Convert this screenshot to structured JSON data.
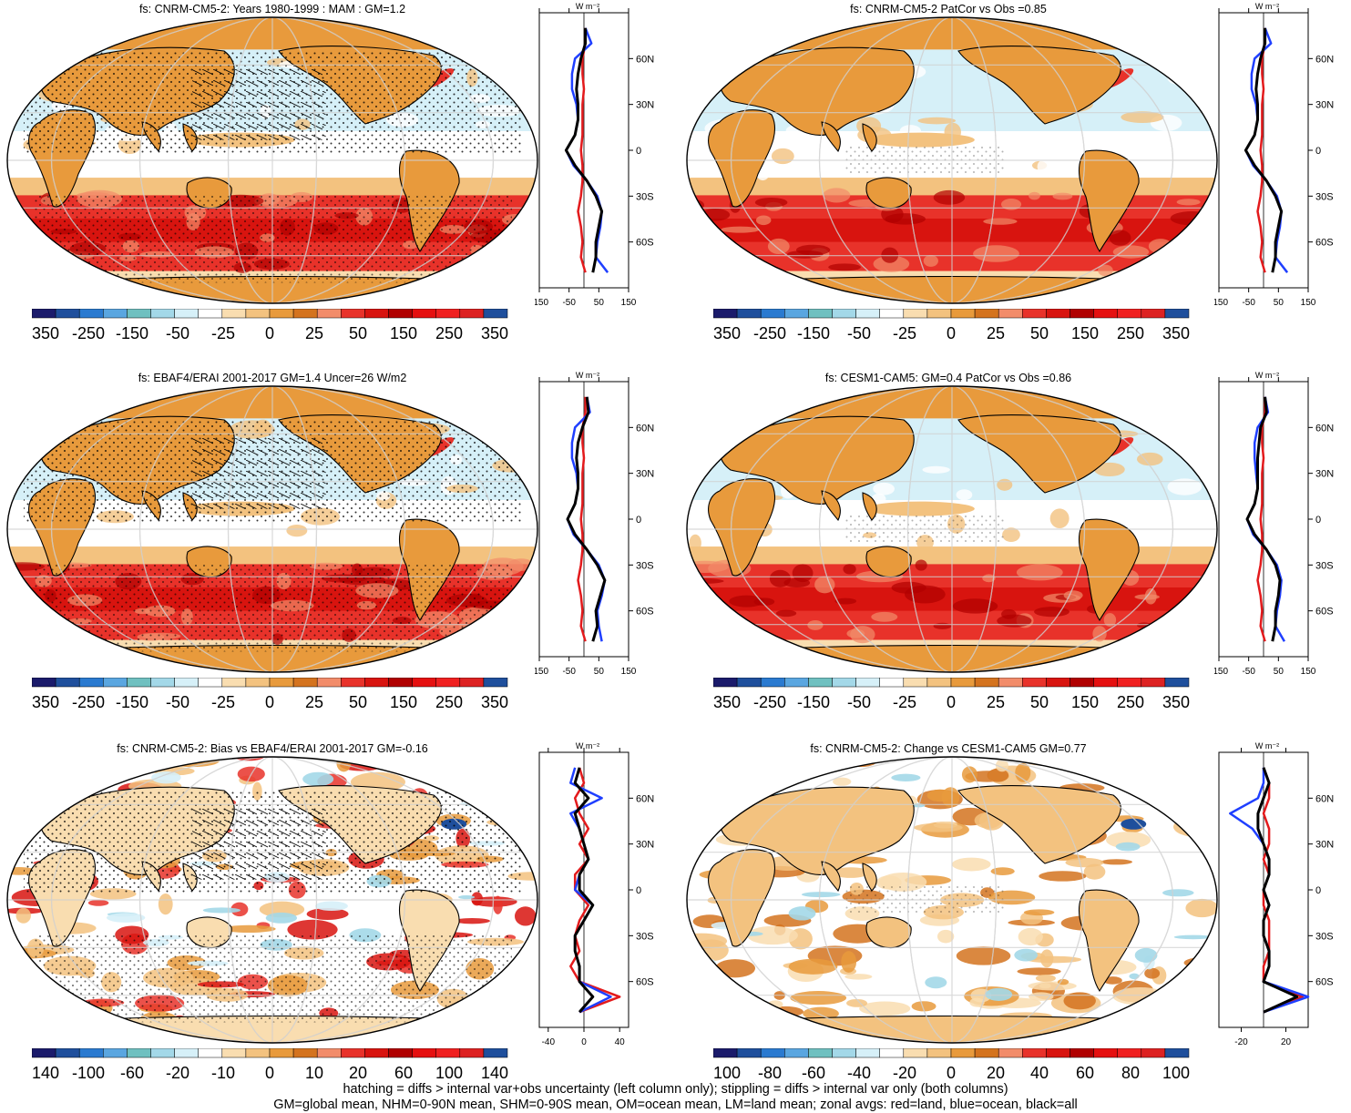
{
  "panels": [
    {
      "title": "fs: CNRM-CM5-2: Years 1980-1999 : MAM : GM=1.2",
      "cbar_labels": [
        "-350",
        "-250",
        "-150",
        "-50",
        "-25",
        "0",
        "25",
        "50",
        "150",
        "250",
        "350"
      ],
      "cbar": "main",
      "zonal_ticks": [
        "-150",
        "-50",
        "50",
        "150"
      ],
      "zonal_range": [
        -150,
        150
      ]
    },
    {
      "title": "fs: CNRM-CM5-2 PatCor vs Obs =0.85",
      "cbar_labels": [
        "-350",
        "-250",
        "-150",
        "-50",
        "-25",
        "0",
        "25",
        "50",
        "150",
        "250",
        "350"
      ],
      "cbar": "main",
      "zonal_ticks": [
        "-150",
        "-50",
        "50",
        "150"
      ],
      "zonal_range": [
        -150,
        150
      ]
    },
    {
      "title": "fs: EBAF4/ERAI 2001-2017 GM=1.4 Uncer=26 W/m2",
      "cbar_labels": [
        "-350",
        "-250",
        "-150",
        "-50",
        "-25",
        "0",
        "25",
        "50",
        "150",
        "250",
        "350"
      ],
      "cbar": "main",
      "zonal_ticks": [
        "-150",
        "-50",
        "50",
        "150"
      ],
      "zonal_range": [
        -150,
        150
      ]
    },
    {
      "title": "fs: CESM1-CAM5: GM=0.4 PatCor vs Obs =0.86",
      "cbar_labels": [
        "-350",
        "-250",
        "-150",
        "-50",
        "-25",
        "0",
        "25",
        "50",
        "150",
        "250",
        "350"
      ],
      "cbar": "main",
      "zonal_ticks": [
        "-150",
        "-50",
        "50",
        "150"
      ],
      "zonal_range": [
        -150,
        150
      ]
    },
    {
      "title": "fs: CNRM-CM5-2: Bias vs EBAF4/ERAI 2001-2017 GM=-0.16",
      "cbar_labels": [
        "-140",
        "-100",
        "-60",
        "-20",
        "-10",
        "0",
        "10",
        "20",
        "60",
        "100",
        "140"
      ],
      "cbar": "diff",
      "zonal_ticks": [
        "-40",
        "0",
        "40"
      ],
      "zonal_range": [
        -50,
        50
      ]
    },
    {
      "title": "fs: CNRM-CM5-2: Change vs CESM1-CAM5 GM=0.77",
      "cbar_labels": [
        "-100",
        "-80",
        "-60",
        "-40",
        "-20",
        "0",
        "20",
        "40",
        "60",
        "80",
        "100"
      ],
      "cbar": "diff",
      "zonal_ticks": [
        "-20",
        "20"
      ],
      "zonal_range": [
        -40,
        40
      ]
    }
  ],
  "zonal_unit": "W m⁻²",
  "lat_labels": [
    "60N",
    "30N",
    "0",
    "30S",
    "60S"
  ],
  "lat_values": [
    60,
    30,
    0,
    -30,
    -60
  ],
  "colors": {
    "scale": [
      "#1b1b6b",
      "#1f4f9c",
      "#2a7ad0",
      "#5aa6e0",
      "#6fc0c0",
      "#a3d8e8",
      "#d6f0f8",
      "#ffffff",
      "#f9ddb0",
      "#f3c27f",
      "#e89a3c",
      "#d4731e",
      "#f28c6a",
      "#e8322a",
      "#d8140f",
      "#b00000",
      "#e51010",
      "#f02020",
      "#dd2222",
      "#1f4f9c"
    ],
    "land": "#e8a060",
    "ocean_warm": "#e0301a",
    "ocean_cool": "#d6f0f8",
    "red": "#e31a1c",
    "blue": "#1f3fff",
    "black": "#000000"
  },
  "chart_data": [
    {
      "type": "heatmap",
      "title": "fs: CNRM-CM5-2: Years 1980-1999 : MAM : GM=1.2",
      "zonal": {
        "lat": [
          80,
          70,
          60,
          50,
          40,
          30,
          20,
          10,
          0,
          -10,
          -20,
          -30,
          -40,
          -50,
          -60,
          -70,
          -80
        ],
        "all": [
          5,
          5,
          -10,
          -20,
          -25,
          -20,
          -20,
          -30,
          -60,
          -30,
          10,
          40,
          60,
          50,
          40,
          40,
          30
        ],
        "land": [
          5,
          5,
          -5,
          -5,
          0,
          -5,
          -5,
          -5,
          -10,
          -5,
          -5,
          -10,
          -20,
          -10,
          -5,
          -10,
          5
        ],
        "ocean": [
          5,
          25,
          -30,
          -40,
          -40,
          -25,
          -20,
          -30,
          -60,
          -35,
          10,
          45,
          60,
          55,
          45,
          40,
          80
        ]
      }
    },
    {
      "type": "heatmap",
      "title": "fs: CNRM-CM5-2 PatCor vs Obs =0.85",
      "zonal": {
        "lat": [
          80,
          70,
          60,
          50,
          40,
          30,
          20,
          10,
          0,
          -10,
          -20,
          -30,
          -40,
          -50,
          -60,
          -70,
          -80
        ],
        "all": [
          5,
          5,
          -10,
          -20,
          -25,
          -20,
          -20,
          -30,
          -60,
          -30,
          10,
          40,
          60,
          50,
          40,
          40,
          30
        ],
        "land": [
          5,
          5,
          -5,
          -5,
          0,
          -5,
          -5,
          -5,
          -10,
          -5,
          -5,
          -10,
          -20,
          -10,
          -5,
          -10,
          5
        ],
        "ocean": [
          5,
          25,
          -30,
          -40,
          -40,
          -25,
          -20,
          -30,
          -60,
          -35,
          10,
          45,
          60,
          55,
          45,
          40,
          80
        ]
      }
    },
    {
      "type": "heatmap",
      "title": "fs: EBAF4/ERAI 2001-2017 GM=1.4 Uncer=26 W/m2",
      "zonal": {
        "lat": [
          80,
          70,
          60,
          50,
          40,
          30,
          20,
          10,
          0,
          -10,
          -20,
          -30,
          -40,
          -50,
          -60,
          -70,
          -80
        ],
        "all": [
          10,
          15,
          -5,
          -20,
          -25,
          -20,
          -20,
          -30,
          -55,
          -30,
          10,
          45,
          70,
          55,
          40,
          45,
          30
        ],
        "land": [
          5,
          5,
          -5,
          -5,
          0,
          -5,
          -5,
          -5,
          -10,
          -5,
          -5,
          -10,
          -20,
          -10,
          -5,
          -10,
          5
        ],
        "ocean": [
          10,
          20,
          -30,
          -40,
          -40,
          -25,
          -20,
          -30,
          -55,
          -35,
          10,
          50,
          70,
          60,
          45,
          50,
          60
        ]
      }
    },
    {
      "type": "heatmap",
      "title": "fs: CESM1-CAM5: GM=0.4 PatCor vs Obs =0.86",
      "zonal": {
        "lat": [
          80,
          70,
          60,
          50,
          40,
          30,
          20,
          10,
          0,
          -10,
          -20,
          -30,
          -40,
          -50,
          -60,
          -70,
          -80
        ],
        "all": [
          5,
          10,
          -10,
          -15,
          -20,
          -20,
          -20,
          -30,
          -55,
          -30,
          10,
          40,
          55,
          50,
          40,
          40,
          30
        ],
        "land": [
          5,
          5,
          -5,
          -5,
          0,
          -5,
          -5,
          -5,
          -10,
          -5,
          -5,
          -10,
          -20,
          -10,
          -5,
          -10,
          5
        ],
        "ocean": [
          5,
          15,
          -20,
          -30,
          -30,
          -25,
          -20,
          -30,
          -55,
          -35,
          10,
          45,
          60,
          55,
          45,
          40,
          70
        ]
      }
    },
    {
      "type": "heatmap",
      "title": "fs: CNRM-CM5-2: Bias vs EBAF4/ERAI 2001-2017 GM=-0.16",
      "zonal": {
        "lat": [
          80,
          70,
          60,
          50,
          40,
          30,
          20,
          10,
          0,
          -10,
          -20,
          -30,
          -40,
          -50,
          -60,
          -70,
          -80
        ],
        "all": [
          -5,
          -10,
          5,
          -10,
          -5,
          0,
          5,
          -5,
          -5,
          10,
          0,
          -10,
          -10,
          -5,
          -5,
          10,
          -5
        ],
        "land": [
          -5,
          0,
          -10,
          -5,
          5,
          -5,
          5,
          -10,
          -10,
          5,
          -5,
          -10,
          -5,
          -15,
          -5,
          40,
          -5
        ],
        "ocean": [
          -10,
          -15,
          20,
          -15,
          -5,
          0,
          5,
          -5,
          -10,
          10,
          0,
          -10,
          -10,
          -5,
          -5,
          30,
          -5
        ]
      }
    },
    {
      "type": "heatmap",
      "title": "fs: CNRM-CM5-2: Change vs CESM1-CAM5 GM=0.77",
      "zonal": {
        "lat": [
          80,
          70,
          60,
          50,
          40,
          30,
          20,
          10,
          0,
          -10,
          -20,
          -30,
          -40,
          -50,
          -60,
          -70,
          -80
        ],
        "all": [
          0,
          5,
          0,
          -5,
          -5,
          0,
          5,
          5,
          0,
          5,
          0,
          0,
          5,
          5,
          0,
          30,
          0
        ],
        "land": [
          0,
          5,
          5,
          0,
          5,
          5,
          0,
          5,
          0,
          0,
          5,
          5,
          5,
          0,
          0,
          35,
          0
        ],
        "ocean": [
          0,
          0,
          -5,
          -30,
          -10,
          0,
          5,
          5,
          0,
          5,
          0,
          0,
          5,
          5,
          0,
          40,
          0
        ]
      }
    }
  ],
  "footer": [
    "hatching = diffs > internal var+obs uncertainty (left column only); stippling = diffs > internal var only (both columns)",
    "GM=global mean, NHM=0-90N mean, SHM=0-90S mean, OM=ocean mean, LM=land mean; zonal avgs: red=land, blue=ocean, black=all"
  ]
}
